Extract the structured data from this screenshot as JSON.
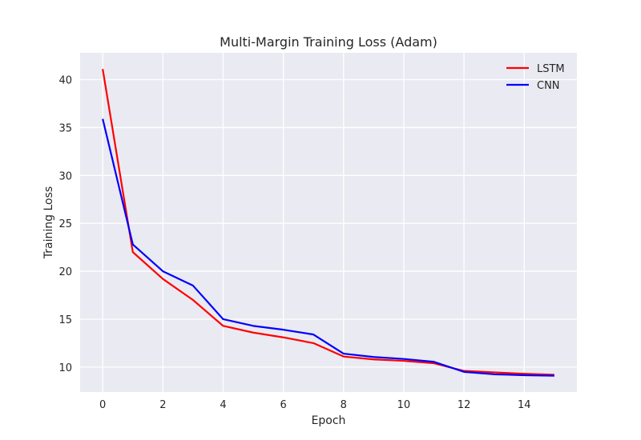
{
  "chart_data": {
    "type": "line",
    "title": "Multi-Margin Training Loss (Adam)",
    "xlabel": "Epoch",
    "ylabel": "Training Loss",
    "xlim": [
      -0.75,
      15.75
    ],
    "ylim": [
      7.4,
      42.8
    ],
    "xticks": [
      0,
      2,
      4,
      6,
      8,
      10,
      12,
      14
    ],
    "yticks": [
      10,
      15,
      20,
      25,
      30,
      35,
      40
    ],
    "grid": true,
    "legend_position": "top-right",
    "x": [
      0,
      1,
      2,
      3,
      4,
      5,
      6,
      7,
      8,
      9,
      10,
      11,
      12,
      13,
      14,
      15
    ],
    "series": [
      {
        "name": "LSTM",
        "color": "#ff0000",
        "values": [
          41.1,
          22.0,
          19.2,
          17.0,
          14.3,
          13.6,
          13.1,
          12.5,
          11.1,
          10.8,
          10.65,
          10.4,
          9.6,
          9.45,
          9.3,
          9.2
        ]
      },
      {
        "name": "CNN",
        "color": "#0000ff",
        "values": [
          35.9,
          22.8,
          20.0,
          18.5,
          15.0,
          14.3,
          13.9,
          13.4,
          11.4,
          11.05,
          10.85,
          10.55,
          9.5,
          9.25,
          9.15,
          9.1
        ]
      }
    ],
    "colors": {
      "plot_background": "#eaeaf2",
      "grid": "#ffffff",
      "text": "#262626"
    }
  }
}
